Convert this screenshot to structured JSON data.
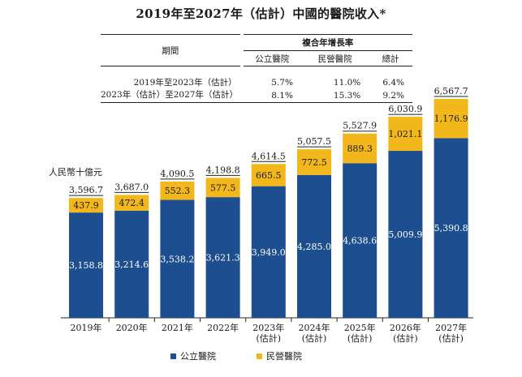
{
  "title": "2019年至2027年（估計）中國的醫院收入*",
  "cagr_table": {
    "header_group": "複合年增長率",
    "period_label": "期間",
    "columns": [
      "公立醫院",
      "民營醫院",
      "總計"
    ],
    "rows": [
      {
        "period": "2019年至2023年（估計）",
        "values": [
          "5.7%",
          "11.0%",
          "6.4%"
        ]
      },
      {
        "period": "2023年（估計）至2027年（估計）",
        "values": [
          "8.1%",
          "15.3%",
          "9.2%"
        ]
      }
    ]
  },
  "chart_data": {
    "type": "bar",
    "stacked": true,
    "ylabel": "人民幣十億元",
    "categories": [
      "2019年",
      "2020年",
      "2021年",
      "2022年",
      "2023年\n(估計)",
      "2024年\n(估計)",
      "2025年\n(估計)",
      "2026年\n(估計)",
      "2027年\n(估計)"
    ],
    "series": [
      {
        "name": "公立醫院",
        "color": "#1d4e8f",
        "values": [
          3158.8,
          3214.6,
          3538.2,
          3621.3,
          3949.0,
          4285.0,
          4638.6,
          5009.9,
          5390.8
        ],
        "labels": [
          "3,158.8",
          "3,214.6",
          "3,538.2",
          "3,621.3",
          "3,949.0",
          "4,285.0",
          "4,638.6",
          "5,009.9",
          "5,390.8"
        ]
      },
      {
        "name": "民營醫院",
        "color": "#f2b71a",
        "values": [
          437.9,
          472.4,
          552.3,
          577.5,
          665.5,
          772.5,
          889.3,
          1021.1,
          1176.9
        ],
        "labels": [
          "437.9",
          "472.4",
          "552.3",
          "577.5",
          "665.5",
          "772.5",
          "889.3",
          "1,021.1",
          "1,176.9"
        ]
      }
    ],
    "totals": [
      3596.7,
      3687.0,
      4090.5,
      4198.8,
      4614.5,
      5057.5,
      5527.9,
      6030.9,
      6567.7
    ],
    "total_labels": [
      "3,596.7",
      "3,687.0",
      "4,090.5",
      "4,198.8",
      "4,614.5",
      "5,057.5",
      "5,527.9",
      "6,030.9",
      "6,567.7"
    ],
    "legend_position": "bottom"
  }
}
